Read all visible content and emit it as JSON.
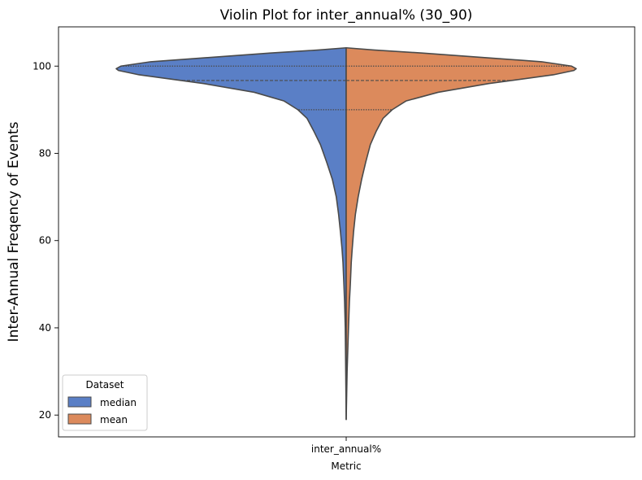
{
  "chart_data": {
    "type": "violin",
    "title": "Violin Plot for inter_annual% (30_90)",
    "xlabel": "Metric",
    "ylabel": "Inter-Annual Freqency of Events",
    "categories": [
      "inter_annual%"
    ],
    "ylim": [
      15,
      109
    ],
    "yticks": [
      20,
      40,
      60,
      80,
      100
    ],
    "grid": false,
    "legend": {
      "title": "Dataset",
      "placement": "lower-left",
      "entries": [
        {
          "name": "median",
          "color": "#5a7fc6"
        },
        {
          "name": "mean",
          "color": "#dc8a5c"
        }
      ]
    },
    "series": [
      {
        "name": "median",
        "side": "left",
        "color": "#5a7fc6",
        "range": [
          19,
          104.2
        ],
        "quartiles": [
          90,
          96.7,
          100
        ],
        "density": [
          [
            19,
            0.0
          ],
          [
            30,
            0.002
          ],
          [
            40,
            0.004
          ],
          [
            46,
            0.007
          ],
          [
            50,
            0.01
          ],
          [
            55,
            0.014
          ],
          [
            58,
            0.018
          ],
          [
            62,
            0.025
          ],
          [
            66,
            0.033
          ],
          [
            70,
            0.043
          ],
          [
            74,
            0.06
          ],
          [
            78,
            0.085
          ],
          [
            82,
            0.112
          ],
          [
            85,
            0.14
          ],
          [
            88,
            0.17
          ],
          [
            90,
            0.21
          ],
          [
            92,
            0.27
          ],
          [
            94,
            0.4
          ],
          [
            96,
            0.62
          ],
          [
            98,
            0.9
          ],
          [
            99,
            0.99
          ],
          [
            99.4,
            1.0
          ],
          [
            100,
            0.98
          ],
          [
            101,
            0.85
          ],
          [
            102,
            0.59
          ],
          [
            103,
            0.33
          ],
          [
            103.7,
            0.12
          ],
          [
            104.2,
            0.0
          ]
        ]
      },
      {
        "name": "mean",
        "side": "right",
        "color": "#dc8a5c",
        "range": [
          19,
          104.2
        ],
        "quartiles": [
          90,
          96.7,
          100
        ],
        "density": [
          [
            19,
            0.0
          ],
          [
            30,
            0.004
          ],
          [
            40,
            0.01
          ],
          [
            46,
            0.014
          ],
          [
            50,
            0.018
          ],
          [
            55,
            0.022
          ],
          [
            58,
            0.026
          ],
          [
            62,
            0.032
          ],
          [
            66,
            0.04
          ],
          [
            70,
            0.052
          ],
          [
            74,
            0.067
          ],
          [
            78,
            0.085
          ],
          [
            82,
            0.105
          ],
          [
            85,
            0.13
          ],
          [
            88,
            0.16
          ],
          [
            90,
            0.2
          ],
          [
            92,
            0.26
          ],
          [
            94,
            0.4
          ],
          [
            96,
            0.62
          ],
          [
            98,
            0.9
          ],
          [
            99,
            0.99
          ],
          [
            99.4,
            1.0
          ],
          [
            100,
            0.98
          ],
          [
            101,
            0.85
          ],
          [
            102,
            0.59
          ],
          [
            103,
            0.33
          ],
          [
            103.7,
            0.12
          ],
          [
            104.2,
            0.0
          ]
        ]
      }
    ]
  }
}
